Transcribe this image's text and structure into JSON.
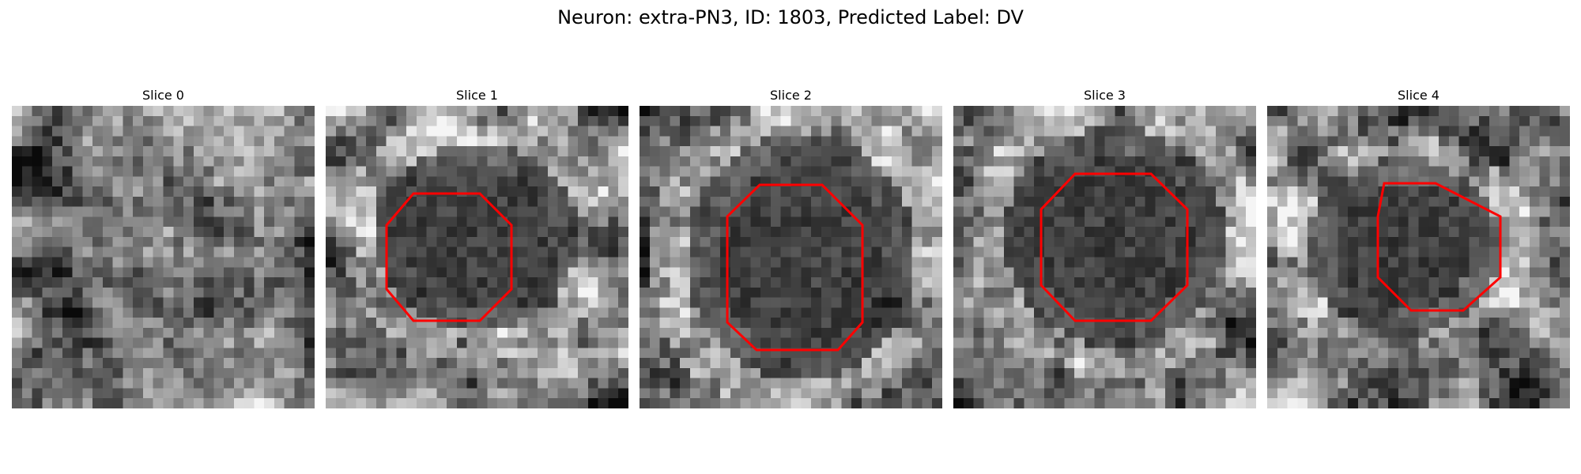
{
  "figure": {
    "title": "Neuron: extra-PN3, ID: 1803, Predicted Label: DV"
  },
  "panels": [
    {
      "title": "Slice 0",
      "has_contour": false,
      "contour_color": "#ff0000"
    },
    {
      "title": "Slice 1",
      "has_contour": true,
      "contour_color": "#ff0000"
    },
    {
      "title": "Slice 2",
      "has_contour": true,
      "contour_color": "#ff0000"
    },
    {
      "title": "Slice 3",
      "has_contour": true,
      "contour_color": "#ff0000"
    },
    {
      "title": "Slice 4",
      "has_contour": true,
      "contour_color": "#ff0000"
    }
  ],
  "colormap": "gray"
}
